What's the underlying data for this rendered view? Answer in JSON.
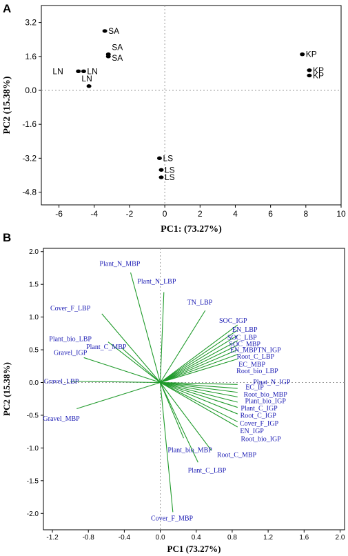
{
  "chart_data": [
    {
      "panel": "A",
      "type": "scatter",
      "xlabel": "PC1: (73.27%)",
      "ylabel": "PC2 (15.38%)",
      "xlim": [
        -7,
        10
      ],
      "ylim": [
        -5.4,
        4.0
      ],
      "xticks": [
        -6,
        -4,
        -2,
        0,
        2,
        4,
        6,
        8,
        10
      ],
      "yticks": [
        3.2,
        1.6,
        0.0,
        -1.6,
        -3.2,
        -4.8
      ],
      "ytick_labels": [
        "3.2",
        "1.6",
        "0.0",
        "-1.6",
        "-3.2",
        "-4.8"
      ],
      "points": [
        {
          "label": "SA",
          "x": -3.4,
          "y": 2.8
        },
        {
          "label": "SA",
          "x": -3.2,
          "y": 1.7
        },
        {
          "label": "SA",
          "x": -3.2,
          "y": 1.6
        },
        {
          "label": "LN",
          "x": -4.9,
          "y": 0.9
        },
        {
          "label": "LN",
          "x": -4.6,
          "y": 0.9
        },
        {
          "label": "LN",
          "x": -4.3,
          "y": 0.2
        },
        {
          "label": "KP",
          "x": 7.8,
          "y": 1.7
        },
        {
          "label": "KP",
          "x": 8.2,
          "y": 0.95
        },
        {
          "label": "KP",
          "x": 8.2,
          "y": 0.7
        },
        {
          "label": "LS",
          "x": -0.3,
          "y": -3.2
        },
        {
          "label": "LS",
          "x": -0.2,
          "y": -3.75
        },
        {
          "label": "LS",
          "x": -0.2,
          "y": -4.1
        }
      ]
    },
    {
      "panel": "B",
      "type": "biplot",
      "xlabel": "PC1 (73.27%)",
      "ylabel": "PC2 (15.38%)",
      "xlim": [
        -1.3,
        2.05
      ],
      "ylim": [
        -2.25,
        2.05
      ],
      "xticks": [
        -1.2,
        -0.8,
        -0.4,
        0.0,
        0.4,
        0.8,
        1.2,
        1.6,
        2.0
      ],
      "xtick_labels": [
        "-1.2",
        "-0.8",
        "-0.4",
        "0.0",
        "0.4",
        "0.8",
        "1.2",
        "1.6",
        "2.0"
      ],
      "yticks": [
        2.0,
        1.5,
        1.0,
        0.5,
        0.0,
        -0.5,
        -1.0,
        -1.5,
        -2.0
      ],
      "ytick_labels": [
        "2.0",
        "1.5",
        "1.0",
        "0.5",
        "0.0",
        "-0.5",
        "-1.0",
        "-1.5",
        "-2.0"
      ],
      "vectors": [
        {
          "label": "Plant_N_MBP",
          "x": -0.33,
          "y": 1.68,
          "lx": -0.45,
          "ly": 1.82
        },
        {
          "label": "Plant_N_LBP",
          "x": 0.04,
          "y": 1.38,
          "lx": -0.04,
          "ly": 1.55
        },
        {
          "label": "TN_LBP",
          "x": 0.5,
          "y": 1.1,
          "lx": 0.44,
          "ly": 1.23
        },
        {
          "label": "Cover_F_LBP",
          "x": -0.65,
          "y": 1.05,
          "lx": -1.0,
          "ly": 1.14
        },
        {
          "label": "SOC_IGP",
          "x": 0.86,
          "y": 0.88,
          "lx": 0.81,
          "ly": 0.95
        },
        {
          "label": "EN_LBP",
          "x": 0.86,
          "y": 0.8,
          "lx": 0.94,
          "ly": 0.81
        },
        {
          "label": "SOC_LBP",
          "x": 0.86,
          "y": 0.72,
          "lx": 0.91,
          "ly": 0.69
        },
        {
          "label": "SOC_MBP",
          "x": 0.86,
          "y": 0.64,
          "lx": 0.94,
          "ly": 0.59
        },
        {
          "label": "Plant_bio_LBP",
          "x": -0.58,
          "y": 0.62,
          "lx": -1.0,
          "ly": 0.67
        },
        {
          "label": "EN_MBPTN_IGP",
          "x": 0.86,
          "y": 0.57,
          "lx": 1.06,
          "ly": 0.5
        },
        {
          "label": "Plant_C_MBP",
          "x": -0.43,
          "y": 0.53,
          "lx": -0.6,
          "ly": 0.55
        },
        {
          "label": "Gravel_IGP",
          "x": -0.85,
          "y": 0.38,
          "lx": -1.0,
          "ly": 0.46
        },
        {
          "label": "Root_C_LBP",
          "x": 0.86,
          "y": 0.5,
          "lx": 1.06,
          "ly": 0.4
        },
        {
          "label": "EC_MBP",
          "x": 0.86,
          "y": 0.43,
          "lx": 1.02,
          "ly": 0.28
        },
        {
          "label": "Root_bio_LBP",
          "x": 0.86,
          "y": 0.36,
          "lx": 1.08,
          "ly": 0.18
        },
        {
          "label": "Gravel_LBP",
          "x": -1.0,
          "y": 0.02,
          "lx": -1.1,
          "ly": 0.02
        },
        {
          "label": "Plnat_N_IGP",
          "x": 0.86,
          "y": -0.03,
          "lx": 1.24,
          "ly": 0.01
        },
        {
          "label": "EC_IP",
          "x": 0.86,
          "y": -0.09,
          "lx": 1.05,
          "ly": -0.07
        },
        {
          "label": "Root_bio_MBP",
          "x": 0.86,
          "y": -0.15,
          "lx": 1.17,
          "ly": -0.18
        },
        {
          "label": "Plant_bio_IGP",
          "x": 0.86,
          "y": -0.22,
          "lx": 1.17,
          "ly": -0.28
        },
        {
          "label": "Plant_C_IGP",
          "x": 0.86,
          "y": -0.3,
          "lx": 1.1,
          "ly": -0.39
        },
        {
          "label": "Gravel_MBP",
          "x": -0.93,
          "y": -0.4,
          "lx": -1.1,
          "ly": -0.55
        },
        {
          "label": "Root_C_IGP",
          "x": 0.86,
          "y": -0.38,
          "lx": 1.09,
          "ly": -0.5
        },
        {
          "label": "Cover_F_IGP",
          "x": 0.86,
          "y": -0.48,
          "lx": 1.1,
          "ly": -0.62
        },
        {
          "label": "EN_IGP",
          "x": 0.86,
          "y": -0.6,
          "lx": 1.02,
          "ly": -0.74
        },
        {
          "label": "Root_bio_IGP",
          "x": 0.86,
          "y": -0.68,
          "lx": 1.12,
          "ly": -0.86
        },
        {
          "label": "Plant_bio_MBP",
          "x": 0.26,
          "y": -0.85,
          "lx": 0.33,
          "ly": -1.03
        },
        {
          "label": "Root_C_MBP",
          "x": 0.57,
          "y": -1.04,
          "lx": 0.85,
          "ly": -1.1
        },
        {
          "label": "Plant_C_LBP",
          "x": 0.42,
          "y": -1.22,
          "lx": 0.52,
          "ly": -1.34
        },
        {
          "label": "Cover_F_MBP",
          "x": 0.14,
          "y": -1.98,
          "lx": 0.13,
          "ly": -2.07
        }
      ]
    }
  ],
  "panels": {
    "A": {
      "letter": "A"
    },
    "B": {
      "letter": "B"
    }
  }
}
